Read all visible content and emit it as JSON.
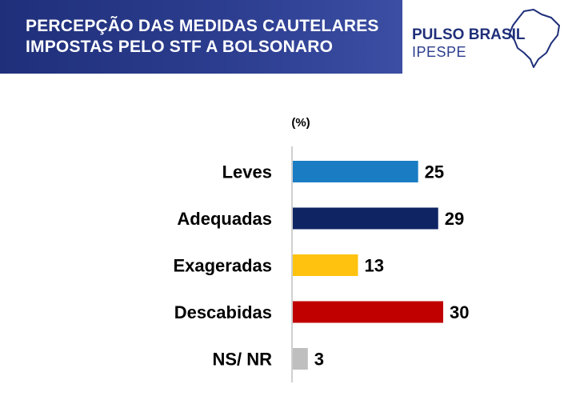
{
  "header": {
    "title_line1": "PERCEPÇÃO DAS MEDIDAS CAUTELARES",
    "title_line2": "IMPOSTAS PELO STF A BOLSONARO"
  },
  "brand": {
    "name": "PULSO BRASIL",
    "sub": "IPESPE",
    "icon": "brazil-map-icon",
    "color": "#1f2f7a"
  },
  "chart_data": {
    "type": "bar",
    "orientation": "horizontal",
    "unit_label": "(%)",
    "categories": [
      "Leves",
      "Adequadas",
      "Exageradas",
      "Descabidas",
      "NS/ NR"
    ],
    "values": [
      25,
      29,
      13,
      30,
      3
    ],
    "colors": [
      "#1a7dc4",
      "#0e2463",
      "#ffc20e",
      "#c00000",
      "#bfbfbf"
    ],
    "xlim": [
      0,
      30
    ],
    "grid": false,
    "legend": "none"
  }
}
